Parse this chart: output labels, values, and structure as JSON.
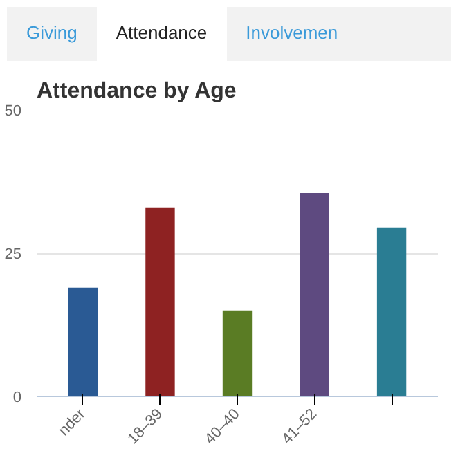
{
  "chart_data": {
    "type": "bar",
    "title": "Attendance by Age",
    "annotations": [
      "Giving",
      "Attendance",
      "Involvemen"
    ],
    "categories": [
      "nder",
      "18–39",
      "40–40",
      "41–52",
      null
    ],
    "values": [
      19,
      33,
      15,
      35.5,
      29.5
    ],
    "colors": [
      "#2a5a94",
      "#8e2222",
      "#5a7c24",
      "#5e4a80",
      "#2a7d93"
    ],
    "ylim": [
      0,
      50
    ],
    "yticks": [
      0,
      25,
      50
    ],
    "grid": "y"
  }
}
